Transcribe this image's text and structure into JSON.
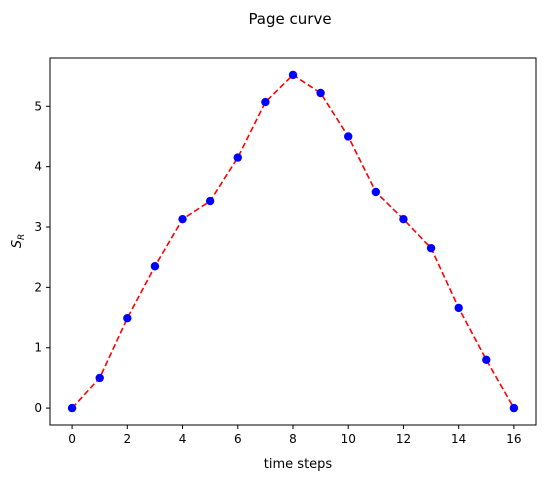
{
  "chart_data": {
    "type": "line",
    "title": "Page curve",
    "xlabel": "time steps",
    "ylabel_main": "S",
    "ylabel_sub": "R",
    "x": [
      0,
      1,
      2,
      3,
      4,
      5,
      6,
      7,
      8,
      9,
      10,
      11,
      12,
      13,
      14,
      15,
      16
    ],
    "series": [
      {
        "values": [
          0.0,
          0.5,
          1.49,
          2.35,
          3.13,
          3.43,
          4.15,
          5.07,
          5.52,
          5.22,
          4.5,
          3.58,
          3.13,
          2.65,
          1.66,
          0.8,
          0.0
        ],
        "line_color": "#ff0000",
        "line_style": "dashed",
        "marker_color": "#0000ff",
        "marker": "circle"
      }
    ],
    "xlim": [
      -0.8,
      16.8
    ],
    "ylim": [
      -0.28,
      5.8
    ],
    "xticks": [
      0,
      2,
      4,
      6,
      8,
      10,
      12,
      14,
      16
    ],
    "yticks": [
      0,
      1,
      2,
      3,
      4,
      5
    ],
    "grid": false,
    "legend": "none"
  }
}
